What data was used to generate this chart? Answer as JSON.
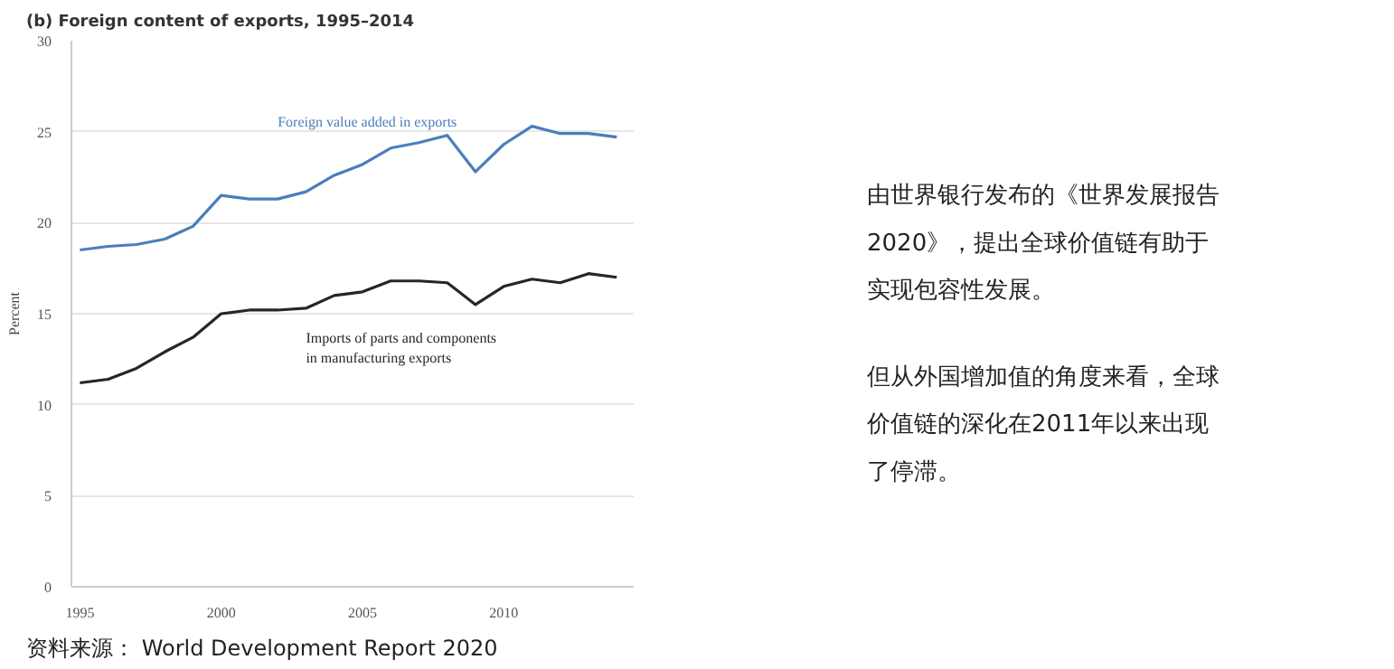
{
  "chart_data": [
    {
      "type": "line",
      "title": "(b) Foreign content of exports, 1995–2014",
      "ylabel": "Percent",
      "x": [
        1995,
        1996,
        1997,
        1998,
        1999,
        2000,
        2001,
        2002,
        2003,
        2004,
        2005,
        2006,
        2007,
        2008,
        2009,
        2010,
        2011,
        2012,
        2013,
        2014
      ],
      "series": [
        {
          "name": "Foreign value added in exports",
          "color": "#4a7ebb",
          "values": [
            18.5,
            18.7,
            18.8,
            19.1,
            19.8,
            21.5,
            21.3,
            21.3,
            21.7,
            22.6,
            23.2,
            24.1,
            24.4,
            24.8,
            22.8,
            24.3,
            25.3,
            24.9,
            24.9,
            24.7
          ]
        },
        {
          "name": "Imports of parts and components in manufacturing exports",
          "color": "#262626",
          "values": [
            11.2,
            11.4,
            12.0,
            12.9,
            13.7,
            15.0,
            15.2,
            15.2,
            15.3,
            16.0,
            16.2,
            16.8,
            16.8,
            16.7,
            15.5,
            16.5,
            16.9,
            16.7,
            17.2,
            17.0
          ]
        }
      ],
      "xlim": [
        1994.7,
        2014.6
      ],
      "xticks": [
        1995,
        2000,
        2005,
        2010
      ],
      "ylim": [
        0,
        30
      ],
      "yticks": [
        0,
        5,
        10,
        15,
        20,
        25,
        30
      ],
      "grid": "y",
      "marker": "none",
      "line_style": "solid",
      "annotations": [
        "资料来源： World Development Report 2020"
      ]
    },
    {
      "type": "other",
      "annotations": [
        "由世界银行发布的《世界发展报告2020》，提出全球价值链有助于实现包容性发展。",
        "但从外国增加值的角度来看，全球价值链的深化在2011年以来出现了停滞。"
      ]
    }
  ]
}
